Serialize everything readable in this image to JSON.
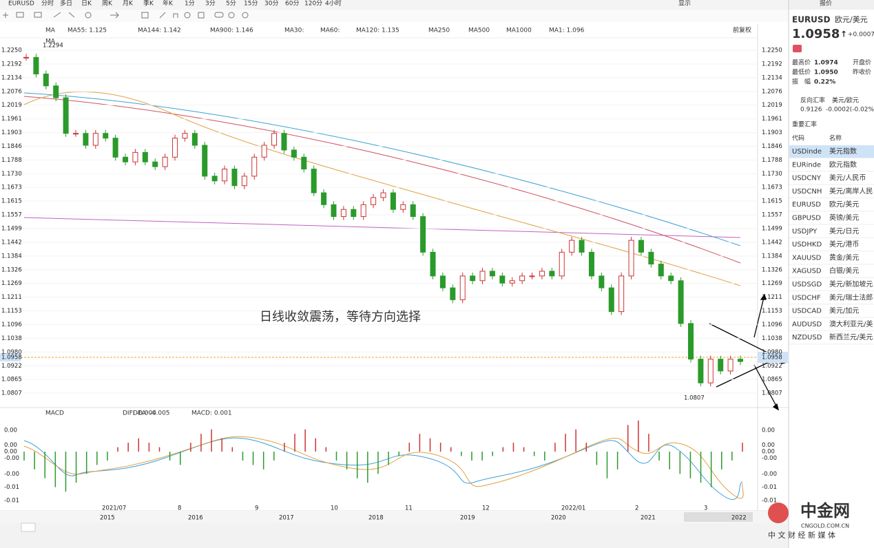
{
  "toolbar": {
    "symbol": "EURUSD",
    "periods": [
      "分时",
      "多日",
      "日K",
      "周K",
      "月K",
      "季K",
      "年K",
      "1分",
      "3分",
      "5分",
      "15分",
      "30分",
      "60分",
      "120分",
      "4小时"
    ],
    "display": "显示"
  },
  "legend": {
    "label": "MA",
    "items": [
      "MA55: 1.125",
      "MA144: 1.142",
      "MA900: 1.146",
      "MA30:",
      "MA60:",
      "MA120: 1.135",
      "MA250",
      "MA500",
      "MA1000",
      "MA1: 1.096"
    ],
    "sub": "MA",
    "adjust": "前复权"
  },
  "chart": {
    "ylim": [
      1.0752,
      1.2302
    ],
    "yticks": [
      {
        "value": 1.225,
        "label": "1.2250"
      },
      {
        "value": 1.2192,
        "label": "1.2192"
      },
      {
        "value": 1.2134,
        "label": "1.2134"
      },
      {
        "value": 1.2076,
        "label": "1.2076"
      },
      {
        "value": 1.2019,
        "label": "1.2019"
      },
      {
        "value": 1.1961,
        "label": "1.1961"
      },
      {
        "value": 1.1903,
        "label": "1.1903"
      },
      {
        "value": 1.1846,
        "label": "1.1846"
      },
      {
        "value": 1.1788,
        "label": "1.1788"
      },
      {
        "value": 1.173,
        "label": "1.1730"
      },
      {
        "value": 1.1673,
        "label": "1.1673"
      },
      {
        "value": 1.1615,
        "label": "1.1615"
      },
      {
        "value": 1.1557,
        "label": "1.1557"
      },
      {
        "value": 1.1499,
        "label": "1.1499"
      },
      {
        "value": 1.1442,
        "label": "1.1442"
      },
      {
        "value": 1.1384,
        "label": "1.1384"
      },
      {
        "value": 1.1326,
        "label": "1.1326"
      },
      {
        "value": 1.1269,
        "label": "1.1269"
      },
      {
        "value": 1.1211,
        "label": "1.1211"
      },
      {
        "value": 1.1153,
        "label": "1.1153"
      },
      {
        "value": 1.1096,
        "label": "1.1096"
      },
      {
        "value": 1.1038,
        "label": "1.1038"
      },
      {
        "value": 1.098,
        "label": "1.0980"
      },
      {
        "value": 1.0922,
        "label": "1.0922"
      },
      {
        "value": 1.0865,
        "label": "1.0865"
      },
      {
        "value": 1.0807,
        "label": "1.0807"
      }
    ],
    "closes": [
      1.222,
      1.215,
      1.21,
      1.205,
      1.19,
      1.19,
      1.185,
      1.19,
      1.188,
      1.18,
      1.178,
      1.182,
      1.178,
      1.176,
      1.18,
      1.188,
      1.19,
      1.185,
      1.172,
      1.17,
      1.175,
      1.168,
      1.172,
      1.18,
      1.185,
      1.19,
      1.183,
      1.18,
      1.175,
      1.165,
      1.16,
      1.155,
      1.158,
      1.155,
      1.16,
      1.163,
      1.165,
      1.158,
      1.16,
      1.155,
      1.14,
      1.13,
      1.125,
      1.12,
      1.13,
      1.128,
      1.132,
      1.13,
      1.127,
      1.128,
      1.13,
      1.13,
      1.132,
      1.13,
      1.14,
      1.145,
      1.14,
      1.13,
      1.125,
      1.115,
      1.13,
      1.145,
      1.14,
      1.135,
      1.13,
      1.128,
      1.11,
      1.095,
      1.085,
      1.095,
      1.09,
      1.095,
      1.094
    ],
    "current": {
      "value": 1.0958,
      "label": "1.0958"
    },
    "high_label": "1.2294",
    "low": {
      "value": 1.0807,
      "label": "1.0807"
    },
    "annotation": "日线收敛震荡，等待方向选择"
  },
  "macd": {
    "label": "MACD",
    "items": [
      "DIF: -0.004",
      "DEA: -0.005",
      "MACD: 0.001"
    ],
    "yticks": [
      {
        "value": 0.0048,
        "label": "0.00"
      },
      {
        "value": 0.0015,
        "label": "0.00"
      },
      {
        "value": 0,
        "label": "0.00"
      },
      {
        "value": -0.0015,
        "label": "-0.00"
      },
      {
        "value": -0.005,
        "label": "-0.00"
      },
      {
        "value": -0.008,
        "label": "-0.01"
      },
      {
        "value": -0.011,
        "label": "-0.01"
      }
    ],
    "values": [
      -0.002,
      -0.004,
      -0.006,
      -0.008,
      -0.009,
      -0.007,
      -0.005,
      -0.003,
      -0.002,
      0.001,
      0.002,
      0.003,
      0.002,
      0.001,
      -0.002,
      -0.003,
      0.002,
      0.004,
      0.005,
      0.003,
      0.001,
      -0.002,
      -0.003,
      -0.004,
      -0.002,
      0.002,
      0.004,
      0.005,
      0.003,
      0.001,
      -0.002,
      -0.004,
      -0.006,
      -0.007,
      -0.005,
      -0.003,
      -0.001,
      0.002,
      0.004,
      0.003,
      0.002,
      0.001,
      -0.001,
      -0.002,
      -0.002,
      -0.001,
      0.001,
      0.002,
      0.001,
      -0.001,
      -0.002,
      0.002,
      0.004,
      0.005,
      0.002,
      -0.003,
      -0.006,
      -0.004,
      0.006,
      0.007,
      0.004,
      -0.002,
      -0.004,
      -0.005,
      -0.006,
      -0.007,
      -0.008,
      -0.004,
      -0.002,
      0.002
    ]
  },
  "time_axis": {
    "months": [
      "2021/07",
      "8",
      "9",
      "10",
      "11",
      "12",
      "2022/01",
      "2",
      "3"
    ],
    "years": [
      "2015",
      "2016",
      "2017",
      "2018",
      "2019",
      "2020",
      "2021",
      "2022"
    ]
  },
  "panel": {
    "tab": "报价",
    "code": "EURUSD",
    "name": "欧元/美元",
    "price": "1.0958",
    "arrow": "↑",
    "change": "+0.0007",
    "stats": [
      [
        "最高价",
        "1.0974"
      ],
      [
        "最低价",
        "1.0950"
      ]
    ],
    "stats_right": [
      "开盘价",
      "昨收价"
    ],
    "amp_label": "振　幅",
    "amp": "0.22%",
    "reverse_label": "反向汇率",
    "reverse_name": "美元/欧元",
    "reverse_price": "0.9126",
    "reverse_change": "-0.0002(-0.02%)",
    "section": "重要汇率",
    "headers": [
      "代码",
      "名称"
    ],
    "rows": [
      [
        "USDinde",
        "美元指数"
      ],
      [
        "EURinde",
        "欧元指数"
      ],
      [
        "USDCNY",
        "美元/人民币"
      ],
      [
        "USDCNH",
        "美元/离岸人民"
      ],
      [
        "EURUSD",
        "欧元/美元"
      ],
      [
        "GBPUSD",
        "英镑/美元"
      ],
      [
        "USDJPY",
        "美元/日元"
      ],
      [
        "USDHKD",
        "美元/港币"
      ],
      [
        "XAUUSD",
        "黄金/美元"
      ],
      [
        "XAGUSD",
        "白银/美元"
      ],
      [
        "USDSGD",
        "美元/新加坡元"
      ],
      [
        "USDCHF",
        "美元/瑞士法郎"
      ],
      [
        "USDCAD",
        "美元/加元"
      ],
      [
        "AUDUSD",
        "澳大利亚元/美"
      ],
      [
        "NZDUSD",
        "新西兰元/美元"
      ]
    ]
  },
  "watermark": {
    "name": "中金网",
    "site": "CNGOLD.COM.CN",
    "slogan": "中 文 财 经 新 媒 体"
  }
}
